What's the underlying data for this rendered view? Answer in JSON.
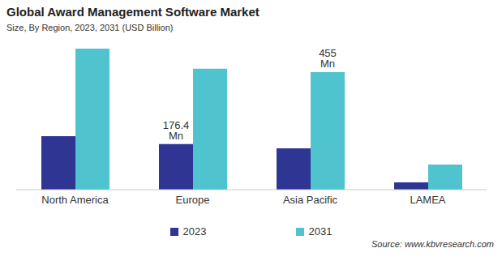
{
  "chart_data": {
    "type": "bar",
    "title": "Global Award Management Software Market",
    "subtitle": "Size, By Region, 2023, 2031 (USD Billion)",
    "source": "Source: www.kbvresearch.com",
    "categories": [
      "North America",
      "Europe",
      "Asia Pacific",
      "LAMEA"
    ],
    "series": [
      {
        "name": "2023",
        "color": "#2e3592",
        "values": [
          207,
          176.4,
          160,
          28
        ],
        "value_labels": [
          null,
          "176.4 Mn",
          null,
          null
        ]
      },
      {
        "name": "2031",
        "color": "#4fc4cf",
        "values": [
          546,
          468,
          455,
          97
        ],
        "value_labels": [
          null,
          null,
          "455 Mn",
          null
        ]
      }
    ],
    "data_labels": true,
    "tick_labels": "x",
    "grid": false,
    "legend": "bottom"
  }
}
